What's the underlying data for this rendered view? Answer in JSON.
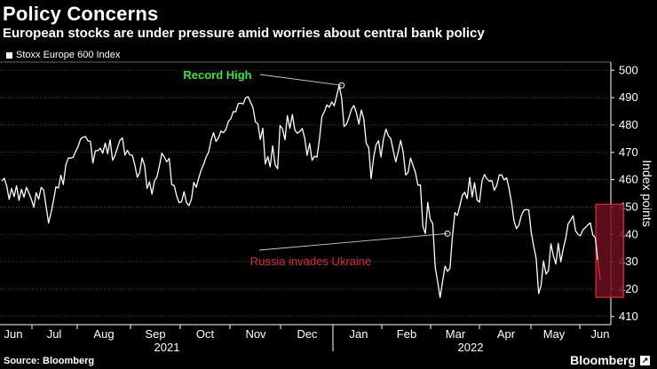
{
  "title": "Policy Concerns",
  "subtitle": "European stocks are under pressure amid worries about central bank policy",
  "legend": {
    "label": "Stoxx Europe 600 Index"
  },
  "source": "Source: Bloomberg",
  "brand": "Bloomberg",
  "brand_mark": "↗",
  "chart_data": {
    "type": "line",
    "series": [
      {
        "name": "Stoxx Europe 600 Index",
        "values": [
          459.5,
          460.5,
          457.8,
          452.8,
          456.8,
          453.8,
          457.8,
          452.4,
          456.5,
          453.6,
          457.2,
          455.2,
          452.9,
          449.9,
          455.3,
          452.9,
          457.2,
          456.2,
          450.3,
          444.2,
          447.9,
          452.3,
          457.4,
          456.9,
          461.6,
          458.2,
          465.3,
          467.9,
          467.9,
          468.2,
          470.3,
          472.2,
          474.9,
          475.5,
          475.8,
          474.2,
          474.0,
          466.1,
          470.6,
          470.6,
          471.5,
          469.7,
          473.4,
          469.5,
          474.6,
          467.1,
          468.9,
          471.8,
          474.4,
          475.3,
          469.0,
          470.7,
          469.1,
          468.9,
          465.5,
          460.9,
          462.6,
          468.0,
          465.2,
          456.8,
          459.2,
          454.7,
          459.6,
          460.9,
          465.0,
          469.7,
          468.3,
          466.5,
          467.8,
          458.2,
          457.9,
          454.2,
          451.6,
          451.9,
          455.6,
          451.7,
          450.5,
          452.8,
          459.0,
          457.2,
          460.7,
          463.6,
          465.6,
          468.3,
          470.1,
          474.5,
          477.2,
          474.0,
          475.3,
          477.8,
          477.2,
          478.3,
          481.3,
          482.3,
          484.9,
          484.8,
          487.8,
          488.0,
          487.7,
          489.9,
          490.4,
          488.4,
          486.4,
          481.1,
          480.4,
          474.7,
          478.8,
          465.8,
          468.5,
          464.7,
          472.4,
          465.4,
          464.0,
          479.8,
          478.6,
          474.6,
          483.4,
          478.8,
          483.8,
          478.2,
          477.0,
          477.6,
          478.7,
          475.2,
          468.9,
          473.3,
          467.1,
          468.6,
          468.2,
          474.8,
          483.2,
          484.8,
          487.3,
          486.5,
          488.4,
          487.0,
          490.6,
          494.5,
          489.9,
          479.5,
          480.3,
          482.8,
          485.8,
          487.1,
          484.5,
          480.3,
          485.5,
          482.3,
          473.3,
          471.7,
          460.4,
          468.1,
          472.8,
          474.3,
          468.3,
          474.8,
          478.5,
          476.0,
          475.0,
          470.5,
          466.5,
          470.3,
          474.4,
          470.1,
          461.7,
          462.7,
          467.9,
          465.2,
          462.6,
          458.0,
          458.1,
          442.9,
          440.3,
          451.7,
          445.5,
          444.0,
          428.0,
          422.8,
          416.9,
          422.9,
          428.4,
          426.5,
          427.5,
          439.4,
          448.0,
          446.9,
          450.4,
          454.3,
          455.4,
          453.1,
          460.8,
          453.7,
          458.9,
          452.6,
          451.8,
          459.5,
          461.9,
          460.4,
          459.4,
          459.7,
          456.1,
          457.9,
          461.7,
          461.7,
          459.9,
          460.7,
          456.7,
          451.9,
          445.0,
          442.1,
          443.4,
          446.9,
          448.8,
          449.1,
          448.9,
          440.8,
          435.7,
          431.3,
          418.4,
          421.3,
          430.3,
          425.5,
          426.8,
          436.6,
          432.2,
          429.2,
          436.7,
          430.0,
          434.7,
          438.6,
          443.9,
          445.2,
          446.8,
          441.3,
          440.0,
          439.5,
          441.7,
          442.5,
          443.5,
          444.2,
          439.8,
          438.8,
          430.7,
          423.5
        ]
      }
    ],
    "x_month_labels": [
      "Jun",
      "Jul",
      "Aug",
      "Sep",
      "Oct",
      "Nov",
      "Dec",
      "Jan",
      "Feb",
      "Mar",
      "Apr",
      "May",
      "Jun"
    ],
    "x_year_labels": [
      "2021",
      "2022"
    ],
    "ylim": [
      407,
      503
    ],
    "yticks": [
      410,
      420,
      430,
      440,
      450,
      460,
      470,
      480,
      490,
      500
    ],
    "ylabel": "Index points",
    "grid": "horizontal dotted",
    "annotations": [
      {
        "text": "Record High",
        "color": "#39e639",
        "value": 494.5,
        "point_index": 138
      },
      {
        "text": "Russia invades Ukraine",
        "color": "#e0243a",
        "value": 440.3,
        "point_index": 181
      }
    ],
    "highlight": {
      "from_index": 242,
      "to_index": 251,
      "ymin": 417,
      "ymax": 451
    }
  }
}
